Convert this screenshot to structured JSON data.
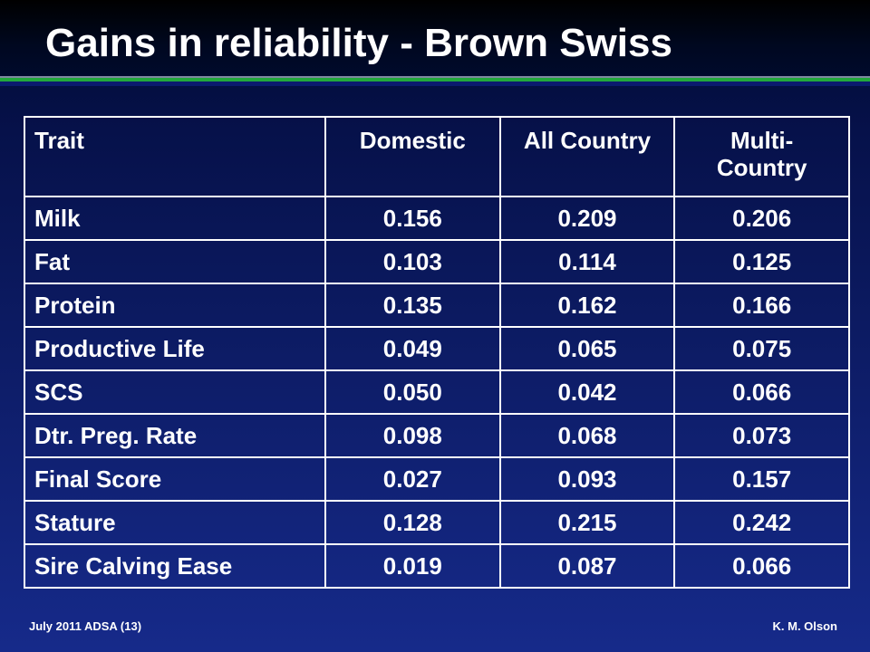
{
  "slide": {
    "title": "Gains in reliability - Brown Swiss"
  },
  "table": {
    "headers": [
      "Trait",
      "Domestic",
      "All Country",
      "Multi- Country"
    ],
    "rows": [
      {
        "trait": "Milk",
        "domestic": "0.156",
        "all_country": "0.209",
        "multi_country": "0.206"
      },
      {
        "trait": "Fat",
        "domestic": "0.103",
        "all_country": "0.114",
        "multi_country": "0.125"
      },
      {
        "trait": "Protein",
        "domestic": "0.135",
        "all_country": "0.162",
        "multi_country": "0.166"
      },
      {
        "trait": "Productive Life",
        "domestic": "0.049",
        "all_country": "0.065",
        "multi_country": "0.075"
      },
      {
        "trait": "SCS",
        "domestic": "0.050",
        "all_country": "0.042",
        "multi_country": "0.066"
      },
      {
        "trait": "Dtr. Preg. Rate",
        "domestic": "0.098",
        "all_country": "0.068",
        "multi_country": "0.073"
      },
      {
        "trait": "Final Score",
        "domestic": "0.027",
        "all_country": "0.093",
        "multi_country": "0.157"
      },
      {
        "trait": "Stature",
        "domestic": "0.128",
        "all_country": "0.215",
        "multi_country": "0.242"
      },
      {
        "trait": "Sire Calving Ease",
        "domestic": "0.019",
        "all_country": "0.087",
        "multi_country": "0.066"
      }
    ]
  },
  "footer": {
    "left": "July 2011 ADSA (13)",
    "right": "K. M. Olson"
  },
  "colors": {
    "background_top": "#000a30",
    "background_bottom": "#162a8a",
    "accent_green": "#22a83c",
    "text": "#ffffff"
  }
}
